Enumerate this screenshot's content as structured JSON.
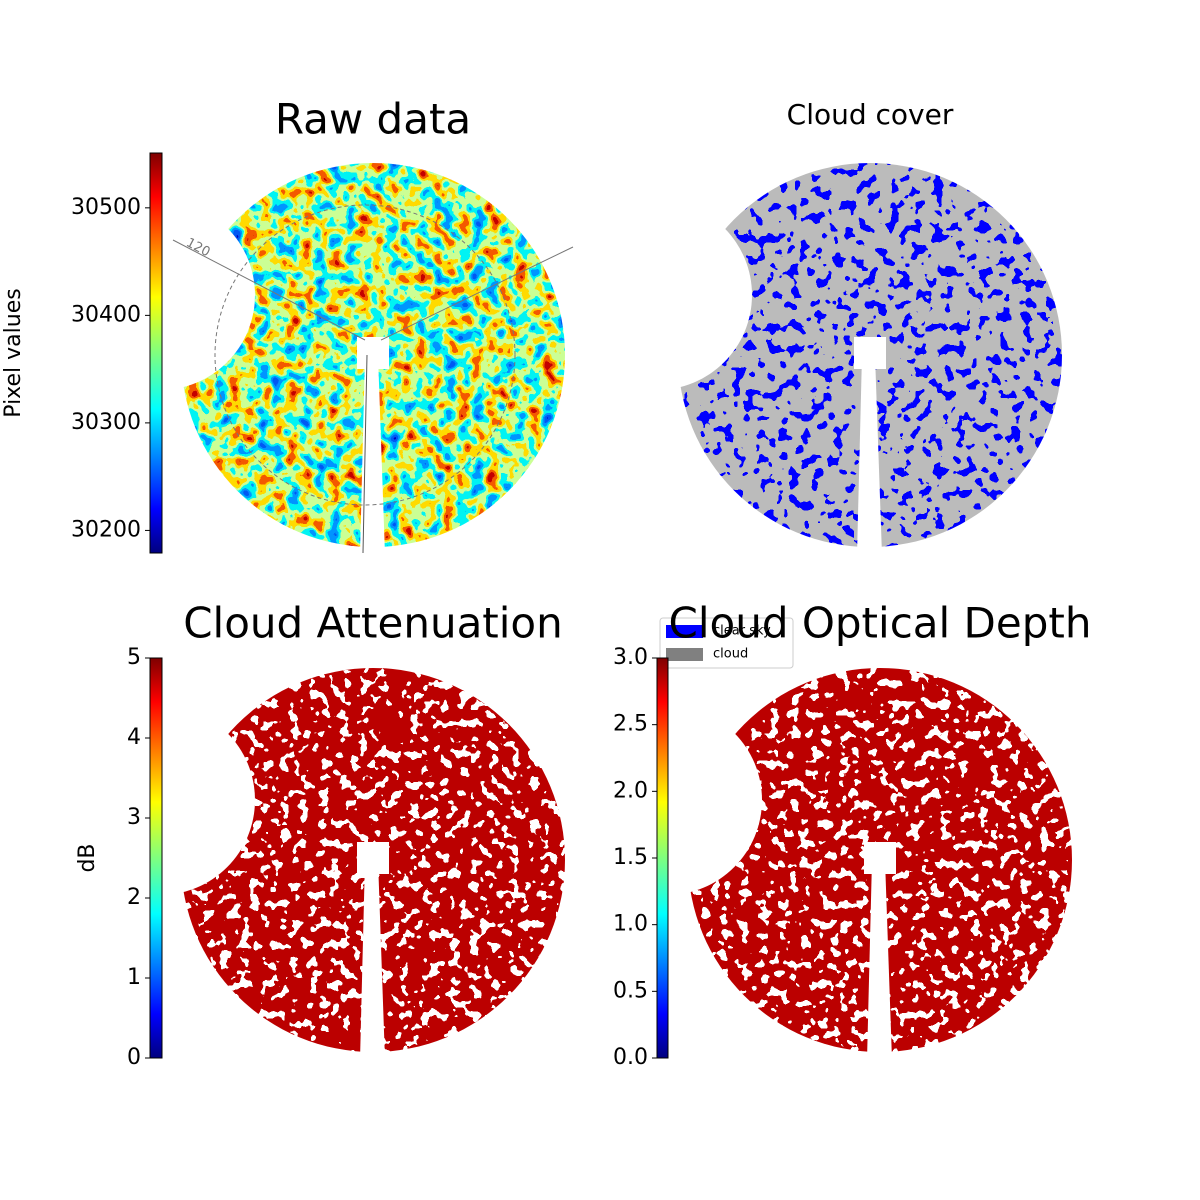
{
  "chart_data": [
    {
      "type": "image",
      "title": "Raw data",
      "colorbar_label": "Pixel values",
      "colormap": "jet",
      "clim": [
        30179,
        30551
      ],
      "cticks": [
        30200,
        30300,
        30400,
        30500
      ],
      "annotation": "120"
    },
    {
      "type": "image",
      "title": "Cloud cover",
      "series": [
        {
          "name": "clear sky",
          "color": "#0000ff"
        },
        {
          "name": "cloud",
          "color": "#808080"
        }
      ]
    },
    {
      "type": "image",
      "title": "Cloud Attenuation",
      "colorbar_label": "dB",
      "colormap": "jet",
      "clim": [
        0,
        5
      ],
      "cticks": [
        0,
        1,
        2,
        3,
        4,
        5
      ],
      "color": "#800000"
    },
    {
      "type": "image",
      "title": "Cloud Optical Depth",
      "colormap": "jet",
      "clim": [
        0,
        3
      ],
      "cticks": [
        {
          "value": 0,
          "label": "0.0"
        },
        0.5,
        {
          "value": 1,
          "label": "1.0"
        },
        1.5,
        {
          "value": 2,
          "label": "2.0"
        },
        2.5,
        {
          "value": 3,
          "label": "3.0"
        }
      ],
      "color": "#800000"
    }
  ]
}
